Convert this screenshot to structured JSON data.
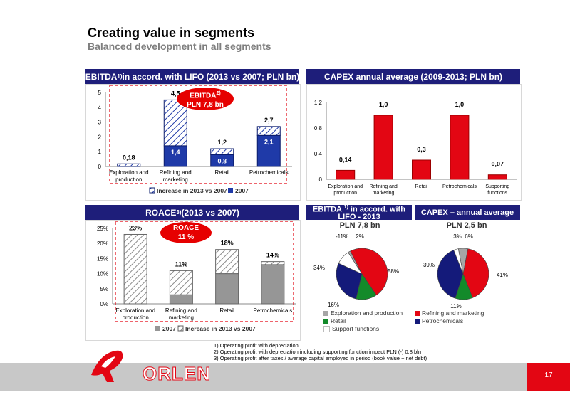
{
  "header": {
    "title": "Creating value in segments",
    "subtitle": "Balanced development in all segments"
  },
  "panels": {
    "ebitda": {
      "title_main": "EBITDA",
      "title_sup": "1)",
      "title_rest": " in accord. with LIFO (2013 vs 2007; PLN bn)",
      "badge_line1": "EBITDA",
      "badge_sup": "2)",
      "badge_line2": "PLN 7,8 bn"
    },
    "capex": {
      "title": "CAPEX annual average (2009-2013; PLN bn)"
    },
    "roace": {
      "title_main": "ROACE ",
      "title_sup": "3)",
      "title_rest": " (2013 vs 2007)",
      "badge_line1": "ROACE",
      "badge_line2": "11 %"
    },
    "pie_ebitda": {
      "title_main": "EBITDA ",
      "title_sup": "1)",
      "title_rest": " in accord. with LIFO - 2013",
      "total": "PLN 7,8 bn"
    },
    "pie_capex": {
      "title": "CAPEX – annual average",
      "total": "PLN 2,5 bn"
    }
  },
  "chart_data": [
    {
      "type": "bar",
      "title": "EBITDA1) in accord. with LIFO (2013 vs 2007; PLN bn)",
      "categories": [
        "Exploration and production",
        "Refining and marketing",
        "Retail",
        "Petrochemicals"
      ],
      "series": [
        {
          "name": "2007",
          "values": [
            0,
            1.4,
            0.8,
            2.1
          ],
          "labels": [
            "",
            "1,4",
            "0,8",
            "2,1"
          ]
        },
        {
          "name": "Increase in 2013 vs 2007",
          "values": [
            0.18,
            3.1,
            0.4,
            0.6
          ]
        }
      ],
      "totals": [
        "0,18",
        "4,5",
        "1,2",
        "2,7"
      ],
      "ylim": [
        0,
        5
      ],
      "yticks": [
        "0",
        "1",
        "2",
        "3",
        "4",
        "5"
      ],
      "legend": [
        "Increase in 2013 vs 2007",
        "2007"
      ],
      "colors": {
        "2007": "#1f3aa8",
        "increase": "#1f3aa8"
      }
    },
    {
      "type": "bar",
      "title": "CAPEX annual average (2009-2013; PLN bn)",
      "categories": [
        "Exploration and production",
        "Refining and marketing",
        "Retail",
        "Petrochemicals",
        "Supporting functions"
      ],
      "values": [
        0.14,
        1.0,
        0.3,
        1.0,
        0.07
      ],
      "labels": [
        "0,14",
        "1,0",
        "0,3",
        "1,0",
        "0,07"
      ],
      "ylim": [
        0,
        1.2
      ],
      "yticks": [
        "0",
        "0,4",
        "0,8",
        "1,2"
      ],
      "colors": {
        "bar": "#e30613"
      }
    },
    {
      "type": "bar",
      "title": "ROACE 3) (2013 vs 2007)",
      "categories": [
        "Exploration and production",
        "Refining and marketing",
        "Retail",
        "Petrochemicals"
      ],
      "series": [
        {
          "name": "2007",
          "values": [
            0,
            3,
            10,
            13
          ]
        },
        {
          "name": "Increase in 2013 vs 2007",
          "values": [
            23,
            8,
            8,
            1
          ]
        }
      ],
      "totals": [
        "23%",
        "11%",
        "18%",
        "14%"
      ],
      "ylim": [
        0,
        25
      ],
      "yticks": [
        "0%",
        "5%",
        "10%",
        "15%",
        "20%",
        "25%"
      ],
      "legend": [
        "2007",
        "Increase in 2013 vs 2007"
      ],
      "colors": {
        "2007": "#969696",
        "increase": "#969696"
      }
    },
    {
      "type": "pie",
      "title": "EBITDA 1) in accord. with LIFO - 2013",
      "slices": [
        {
          "name": "Exploration and production",
          "value": 2,
          "label": "2%"
        },
        {
          "name": "Refining and marketing",
          "value": 58,
          "label": "58%"
        },
        {
          "name": "Retail",
          "value": 16,
          "label": "16%"
        },
        {
          "name": "Petrochemicals",
          "value": 34,
          "label": "34%"
        },
        {
          "name": "Support functions",
          "value": -11,
          "label": "-11%"
        }
      ]
    },
    {
      "type": "pie",
      "title": "CAPEX – annual average",
      "slices": [
        {
          "name": "Exploration and production",
          "value": 6,
          "label": "6%"
        },
        {
          "name": "Refining and marketing",
          "value": 41,
          "label": "41%"
        },
        {
          "name": "Retail",
          "value": 11,
          "label": "11%"
        },
        {
          "name": "Petrochemicals",
          "value": 39,
          "label": "39%"
        },
        {
          "name": "Support functions",
          "value": 3,
          "label": "3%"
        }
      ]
    }
  ],
  "pie_legend": [
    {
      "name": "Exploration and production",
      "color": "#a6a6a6"
    },
    {
      "name": "Refining and marketing",
      "color": "#e30613"
    },
    {
      "name": "Retail",
      "color": "#138a2a"
    },
    {
      "name": "Petrochemicals",
      "color": "#141a7a"
    },
    {
      "name": "Support functions",
      "color": "#ffffff"
    }
  ],
  "footnotes": [
    "1) Operating profit with depreciation",
    "2) Operating profit with depreciation including supporting function impact PLN (-) 0.8 bln",
    "3) Operating profit after taxes / average capital employed in period (book value + net debt)"
  ],
  "footer": {
    "logo_text": "ORLEN",
    "page_number": "17"
  },
  "colors": {
    "navy": "#1e1e7a",
    "red": "#e30613"
  }
}
